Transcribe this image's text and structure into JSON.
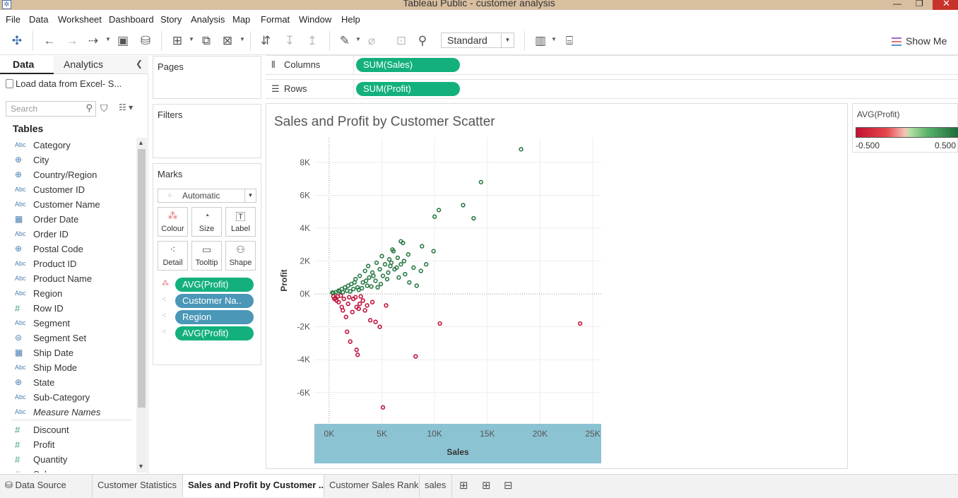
{
  "window": {
    "title": "Tableau Public - customer analysis"
  },
  "menu": [
    "File",
    "Data",
    "Worksheet",
    "Dashboard",
    "Story",
    "Analysis",
    "Map",
    "Format",
    "Window",
    "Help"
  ],
  "toolbar": {
    "fit": "Standard",
    "show_me": "Show Me"
  },
  "left_pane": {
    "tabs": [
      "Data",
      "Analytics"
    ],
    "datasource": "Load data from Excel- S...",
    "search_placeholder": "Search",
    "tables_title": "Tables",
    "fields": [
      {
        "type": "Abc",
        "name": "Category"
      },
      {
        "type": "globe",
        "name": "City"
      },
      {
        "type": "globe",
        "name": "Country/Region"
      },
      {
        "type": "Abc",
        "name": "Customer ID"
      },
      {
        "type": "Abc",
        "name": "Customer Name"
      },
      {
        "type": "date",
        "name": "Order Date"
      },
      {
        "type": "Abc",
        "name": "Order ID"
      },
      {
        "type": "globe",
        "name": "Postal Code"
      },
      {
        "type": "Abc",
        "name": "Product ID"
      },
      {
        "type": "Abc",
        "name": "Product Name"
      },
      {
        "type": "Abc",
        "name": "Region"
      },
      {
        "type": "#",
        "name": "Row ID"
      },
      {
        "type": "Abc",
        "name": "Segment"
      },
      {
        "type": "set",
        "name": "Segment Set"
      },
      {
        "type": "date",
        "name": "Ship Date"
      },
      {
        "type": "Abc",
        "name": "Ship Mode"
      },
      {
        "type": "globe",
        "name": "State"
      },
      {
        "type": "Abc",
        "name": "Sub-Category"
      },
      {
        "type": "Abc",
        "name": "Measure Names",
        "italic": true
      },
      {
        "type": "#",
        "name": "Discount"
      },
      {
        "type": "#",
        "name": "Profit"
      },
      {
        "type": "#",
        "name": "Quantity"
      },
      {
        "type": "#",
        "name": "Sales"
      }
    ]
  },
  "cards": {
    "pages": "Pages",
    "filters": "Filters",
    "marks": {
      "title": "Marks",
      "type": "Automatic",
      "buttons": [
        "Colour",
        "Size",
        "Label",
        "Detail",
        "Tooltip",
        "Shape"
      ],
      "pills": [
        {
          "label": "AVG(Profit)",
          "kind": "color"
        },
        {
          "label": "Customer Na..",
          "kind": "detail"
        },
        {
          "label": "Region",
          "kind": "detail"
        },
        {
          "label": "AVG(Profit)",
          "kind": "detail"
        }
      ]
    }
  },
  "shelves": {
    "columns": {
      "label": "Columns",
      "pill": "SUM(Sales)"
    },
    "rows": {
      "label": "Rows",
      "pill": "SUM(Profit)"
    }
  },
  "legend": {
    "title": "AVG(Profit)",
    "min": "-0.500",
    "max": "0.500"
  },
  "chart_data": {
    "type": "scatter",
    "title": "Sales and Profit by Customer Scatter",
    "xlabel": "Sales",
    "ylabel": "Profit",
    "xlim": [
      -1400,
      25800
    ],
    "ylim": [
      -7900,
      9500
    ],
    "xticks": [
      0,
      5000,
      10000,
      15000,
      20000,
      25000
    ],
    "xtick_labels": [
      "0K",
      "5K",
      "10K",
      "15K",
      "20K",
      "25K"
    ],
    "yticks": [
      -6000,
      -4000,
      -2000,
      0,
      2000,
      4000,
      6000,
      8000
    ],
    "ytick_labels": [
      "-6K",
      "-4K",
      "-2K",
      "0K",
      "2K",
      "4K",
      "6K",
      "8K"
    ],
    "colors": {
      "positive": "#2a7a44",
      "negative": "#c0143c"
    },
    "series": [
      {
        "color_value": "positive",
        "points": [
          [
            18200,
            8800
          ],
          [
            14400,
            6800
          ],
          [
            12700,
            5400
          ],
          [
            10400,
            5100
          ],
          [
            10000,
            4700
          ],
          [
            13700,
            4600
          ],
          [
            6800,
            3200
          ],
          [
            7000,
            3100
          ],
          [
            8800,
            2900
          ],
          [
            6000,
            2700
          ],
          [
            6100,
            2600
          ],
          [
            9900,
            2600
          ],
          [
            7500,
            2400
          ],
          [
            5000,
            2300
          ],
          [
            6500,
            2200
          ],
          [
            5700,
            2100
          ],
          [
            7100,
            2000
          ],
          [
            4500,
            1900
          ],
          [
            5300,
            1800
          ],
          [
            6800,
            1800
          ],
          [
            9200,
            1800
          ],
          [
            3700,
            1700
          ],
          [
            5800,
            1700
          ],
          [
            8000,
            1600
          ],
          [
            4800,
            1500
          ],
          [
            6200,
            1500
          ],
          [
            8700,
            1400
          ],
          [
            3400,
            1400
          ],
          [
            4100,
            1300
          ],
          [
            7200,
            1200
          ],
          [
            5100,
            1100
          ],
          [
            2900,
            1100
          ],
          [
            3800,
            1000
          ],
          [
            6600,
            1000
          ],
          [
            5500,
            900
          ],
          [
            2500,
            900
          ],
          [
            4400,
            800
          ],
          [
            3200,
            700
          ],
          [
            7600,
            700
          ],
          [
            2100,
            600
          ],
          [
            8300,
            500
          ],
          [
            1800,
            500
          ],
          [
            3600,
            500
          ],
          [
            4900,
            600
          ],
          [
            1500,
            400
          ],
          [
            2700,
            400
          ],
          [
            1200,
            300
          ],
          [
            2300,
            300
          ],
          [
            900,
            200
          ],
          [
            1700,
            200
          ],
          [
            600,
            100
          ],
          [
            1300,
            100
          ],
          [
            400,
            50
          ],
          [
            2000,
            150
          ],
          [
            300,
            80
          ],
          [
            1000,
            150
          ],
          [
            2800,
            250
          ],
          [
            3100,
            350
          ],
          [
            4000,
            450
          ],
          [
            4600,
            400
          ],
          [
            2400,
            700
          ],
          [
            3500,
            800
          ],
          [
            4200,
            1100
          ],
          [
            5600,
            1300
          ],
          [
            5900,
            1900
          ],
          [
            6400,
            1600
          ]
        ]
      },
      {
        "color_value": "negative",
        "points": [
          [
            23800,
            -1800
          ],
          [
            10500,
            -1800
          ],
          [
            8200,
            -3800
          ],
          [
            5100,
            -6900
          ],
          [
            2600,
            -3400
          ],
          [
            2700,
            -3700
          ],
          [
            2000,
            -2900
          ],
          [
            1700,
            -2300
          ],
          [
            4800,
            -2000
          ],
          [
            3900,
            -1600
          ],
          [
            4400,
            -1700
          ],
          [
            5400,
            -700
          ],
          [
            3600,
            -700
          ],
          [
            2800,
            -900
          ],
          [
            4100,
            -500
          ],
          [
            2200,
            -1100
          ],
          [
            1600,
            -1400
          ],
          [
            1800,
            -600
          ],
          [
            2300,
            -300
          ],
          [
            1200,
            -800
          ],
          [
            3200,
            -400
          ],
          [
            900,
            -500
          ],
          [
            1400,
            -300
          ],
          [
            600,
            -250
          ],
          [
            2500,
            -200
          ],
          [
            400,
            -150
          ],
          [
            1100,
            -100
          ],
          [
            3000,
            -150
          ],
          [
            1900,
            -200
          ],
          [
            700,
            -400
          ],
          [
            2900,
            -600
          ],
          [
            3400,
            -1000
          ],
          [
            1300,
            -1000
          ],
          [
            2600,
            -800
          ],
          [
            500,
            -300
          ],
          [
            800,
            -150
          ]
        ]
      }
    ]
  },
  "bottom_tabs": {
    "data_source": "Data Source",
    "sheets": [
      "Customer Statistics",
      "Sales and Profit by Customer ...",
      "Customer Sales Rank",
      "sales"
    ],
    "active_index": 1
  }
}
